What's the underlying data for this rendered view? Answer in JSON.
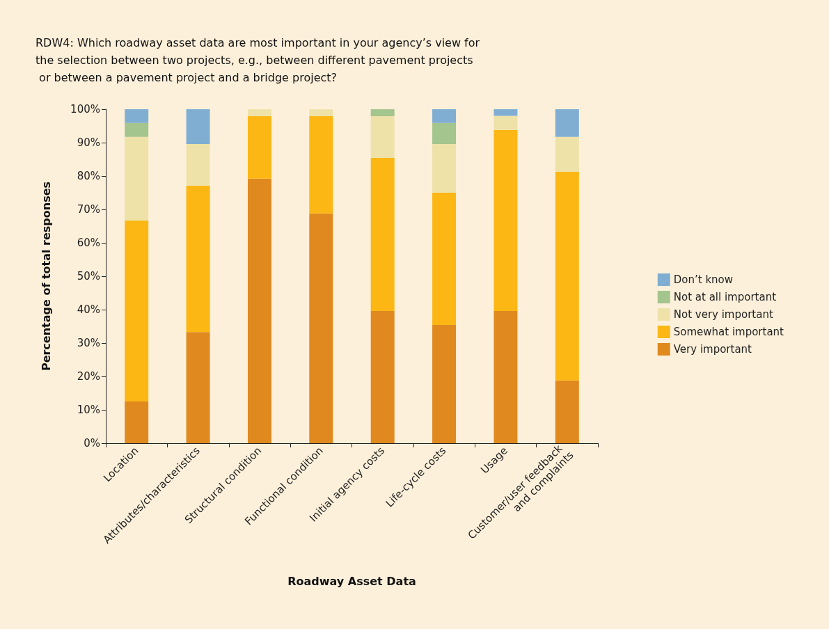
{
  "chart_data": {
    "type": "bar",
    "stacked": true,
    "title": "RDW4: Which roadway asset data are most important in your agency’s view for the selection between two projects, e.g., between different pavement projects or between a pavement project and a bridge project?",
    "xlabel": "Roadway Asset Data",
    "ylabel": "Percentage of total responses",
    "categories": [
      "Location",
      "Attributes/characteristics",
      "Structural condition",
      "Functional condition",
      "Initial agency costs",
      "Life-cycle costs",
      "Usage",
      "Customer/user feedback and complaints"
    ],
    "series": [
      {
        "name": "Very important",
        "color": "#e0891e",
        "values": [
          12.5,
          33.3,
          79.2,
          68.8,
          39.6,
          35.4,
          39.6,
          18.8
        ]
      },
      {
        "name": "Somewhat important",
        "color": "#fcb715",
        "values": [
          54.2,
          43.8,
          18.7,
          29.1,
          45.8,
          39.6,
          54.2,
          62.5
        ]
      },
      {
        "name": "Not very important",
        "color": "#efe2a8",
        "values": [
          25,
          12.5,
          2.1,
          2.1,
          12.5,
          14.6,
          4.2,
          10.4
        ]
      },
      {
        "name": "Not at all important",
        "color": "#a4c58d",
        "values": [
          4.2,
          null,
          null,
          null,
          2.1,
          6.3,
          null,
          null
        ]
      },
      {
        "name": "Don’t know",
        "color": "#80aed3",
        "values": [
          4.1,
          10.4,
          null,
          null,
          null,
          4.1,
          2,
          8.3
        ]
      }
    ],
    "ylim": [
      0,
      100
    ],
    "yticks": [
      {
        "value": 0,
        "label": "0%"
      },
      {
        "value": 10,
        "label": "10%"
      },
      {
        "value": 20,
        "label": "20%"
      },
      {
        "value": 30,
        "label": "30%"
      },
      {
        "value": 40,
        "label": "40%"
      },
      {
        "value": 50,
        "label": "50%"
      },
      {
        "value": 60,
        "label": "60%"
      },
      {
        "value": 70,
        "label": "70%"
      },
      {
        "value": 80,
        "label": "80%"
      },
      {
        "value": 90,
        "label": "90%"
      },
      {
        "value": 100,
        "label": "100%"
      }
    ],
    "grid": false,
    "legend": "right"
  }
}
